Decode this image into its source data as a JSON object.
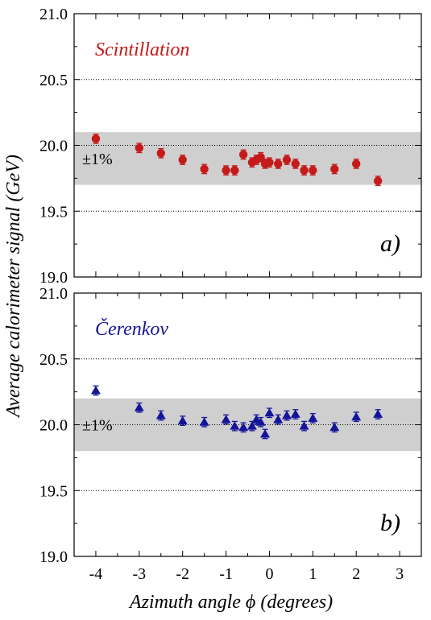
{
  "figure": {
    "ylabel": "Average calorimeter signal (GeV)",
    "xlabel": "Azimuth angle ϕ (degrees)"
  },
  "colors": {
    "scintillation": "#c41a1a",
    "cerenkov": "#14149a",
    "band": "#cfcfcf"
  },
  "chart_data": [
    {
      "type": "scatter",
      "series_label": "Scintillation",
      "panel_label": "a)",
      "band_label": "±1%",
      "xlim": [
        -4.5,
        3.5
      ],
      "ylim": [
        19.0,
        21.0
      ],
      "x_ticks": [
        -4,
        -3,
        -2,
        -1,
        0,
        1,
        2,
        3
      ],
      "y_ticks": [
        "19.0",
        "19.5",
        "20.0",
        "20.5",
        "21.0"
      ],
      "grid_y": [
        19.5,
        20.0,
        20.5
      ],
      "band": [
        19.7,
        20.1
      ],
      "marker": "circle",
      "x": [
        -4.0,
        -3.0,
        -2.5,
        -2.0,
        -1.5,
        -1.0,
        -0.8,
        -0.6,
        -0.4,
        -0.3,
        -0.2,
        -0.1,
        0.0,
        0.2,
        0.4,
        0.6,
        0.8,
        1.0,
        1.5,
        2.0,
        2.5
      ],
      "y": [
        20.05,
        19.98,
        19.94,
        19.89,
        19.82,
        19.81,
        19.81,
        19.93,
        19.87,
        19.89,
        19.91,
        19.86,
        19.87,
        19.86,
        19.89,
        19.86,
        19.81,
        19.81,
        19.82,
        19.86,
        19.73
      ],
      "yerr": 0.035
    },
    {
      "type": "scatter",
      "series_label": "Čerenkov",
      "panel_label": "b)",
      "band_label": "±1%",
      "xlim": [
        -4.5,
        3.5
      ],
      "ylim": [
        19.0,
        21.0
      ],
      "x_ticks": [
        -4,
        -3,
        -2,
        -1,
        0,
        1,
        2,
        3
      ],
      "y_ticks": [
        "19.0",
        "19.5",
        "20.0",
        "20.5",
        "21.0"
      ],
      "grid_y": [
        19.5,
        20.0,
        20.5
      ],
      "band": [
        19.8,
        20.2
      ],
      "marker": "triangle",
      "x": [
        -4.0,
        -3.0,
        -2.5,
        -2.0,
        -1.5,
        -1.0,
        -0.8,
        -0.6,
        -0.4,
        -0.3,
        -0.2,
        -0.1,
        0.0,
        0.2,
        0.4,
        0.6,
        0.8,
        1.0,
        1.5,
        2.0,
        2.5
      ],
      "y": [
        20.26,
        20.13,
        20.07,
        20.03,
        20.02,
        20.04,
        19.99,
        19.98,
        19.99,
        20.04,
        20.02,
        19.93,
        20.09,
        20.04,
        20.07,
        20.08,
        19.99,
        20.05,
        19.98,
        20.06,
        20.08
      ],
      "yerr": 0.035
    }
  ]
}
